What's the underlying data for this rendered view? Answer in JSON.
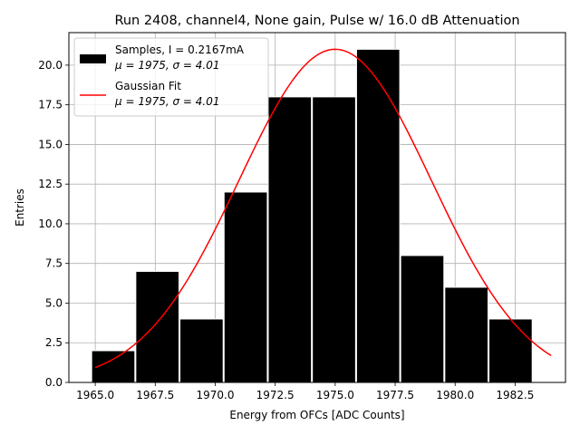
{
  "chart_data": {
    "type": "bar",
    "title": "Run 2408, channel4, None gain, Pulse w/ 16.0 dB Attenuation",
    "xlabel": "Energy from OFCs [ADC Counts]",
    "ylabel": "Entries",
    "xlim": [
      1963.9,
      1984.6
    ],
    "ylim": [
      0,
      22.05
    ],
    "grid": true,
    "legend_position": "top-left",
    "x_ticks": [
      1965.0,
      1967.5,
      1970.0,
      1972.5,
      1975.0,
      1977.5,
      1980.0,
      1982.5
    ],
    "x_tick_labels": [
      "1965.0",
      "1967.5",
      "1970.0",
      "1972.5",
      "1975.0",
      "1977.5",
      "1980.0",
      "1982.5"
    ],
    "y_ticks": [
      0,
      2.5,
      5,
      7.5,
      10,
      12.5,
      15,
      17.5,
      20
    ],
    "y_tick_labels": [
      "0.0",
      "2.5",
      "5.0",
      "7.5",
      "10.0",
      "12.5",
      "15.0",
      "17.5",
      "20.0"
    ],
    "histogram": {
      "name": "Samples, I = 0.2167mA",
      "stats": "μ = 1975, σ = 4.01",
      "color": "#000000",
      "edgecolor": "#ffffff",
      "bin_edges": [
        1964.85,
        1966.69,
        1968.53,
        1970.37,
        1972.21,
        1974.05,
        1975.89,
        1977.73,
        1979.57,
        1981.41,
        1983.25
      ],
      "bin_width_drawn": 1.8,
      "counts": [
        2,
        7,
        4,
        12,
        18,
        18,
        21,
        8,
        6,
        4
      ]
    },
    "fit": {
      "name": "Gaussian Fit",
      "stats": "μ = 1975, σ = 4.01",
      "color": "#ff0000",
      "mu": 1975.0,
      "sigma": 4.01,
      "amplitude": 21.0,
      "x_range": [
        1965.0,
        1984.0
      ]
    }
  }
}
